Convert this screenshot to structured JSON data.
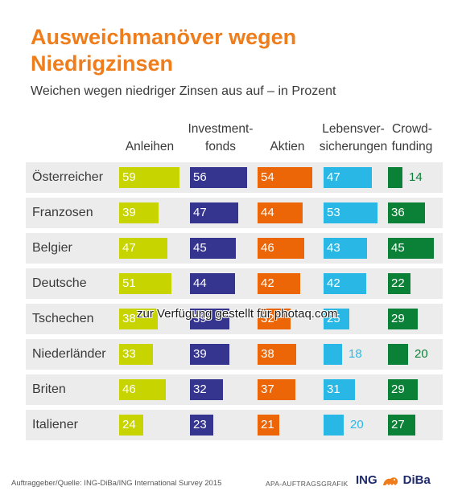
{
  "header": {
    "title_line1": "Ausweichmanöver wegen",
    "title_line2": "Niedrigzinsen",
    "subtitle": "Weichen wegen niedriger Zinsen aus auf – in Prozent"
  },
  "footer": {
    "source": "Auftraggeber/Quelle: ING-DiBa/ING International Survey 2015",
    "apa": "APA-AUFTRAGSGRAFIK",
    "logo_text_1": "ING",
    "logo_text_2": "DiBa"
  },
  "watermark": "zur Verfügung gestellt für photaq.com",
  "colors": {
    "title": "#f07d1b",
    "row_background": "#ececec"
  },
  "chart_data": {
    "type": "bar",
    "title": "Ausweichmanöver wegen Niedrigzinsen",
    "subtitle": "Weichen wegen niedriger Zinsen aus auf – in Prozent",
    "unit": "Prozent",
    "categories": [
      "Österreicher",
      "Franzosen",
      "Belgier",
      "Deutsche",
      "Tschechen",
      "Niederländer",
      "Briten",
      "Italiener"
    ],
    "series": [
      {
        "name": "Anleihen",
        "header_lines": [
          "",
          "Anleihen"
        ],
        "color": "#c8d400",
        "label_color": "#ffffff",
        "values": [
          59,
          39,
          47,
          51,
          38,
          33,
          46,
          24
        ]
      },
      {
        "name": "Investmentfonds",
        "header_lines": [
          "Investment-",
          "fonds"
        ],
        "color": "#35348f",
        "label_color": "#ffffff",
        "values": [
          56,
          47,
          45,
          44,
          39,
          39,
          32,
          23
        ]
      },
      {
        "name": "Aktien",
        "header_lines": [
          "",
          "Aktien"
        ],
        "color": "#ec6608",
        "label_color": "#ffffff",
        "values": [
          54,
          44,
          46,
          42,
          32,
          38,
          37,
          21
        ]
      },
      {
        "name": "Lebensversicherungen",
        "header_lines": [
          "Lebensver-",
          "sicherungen"
        ],
        "color": "#29b8e5",
        "label_color": "#ffffff",
        "outside_label_color": "#29b8e5",
        "values": [
          47,
          53,
          43,
          42,
          25,
          18,
          31,
          20
        ]
      },
      {
        "name": "Crowdfunding",
        "header_lines": [
          "Crowd-",
          "funding"
        ],
        "color": "#0b8137",
        "label_color": "#ffffff",
        "outside_label_color": "#0b8137",
        "values": [
          14,
          36,
          45,
          22,
          29,
          20,
          29,
          27
        ]
      }
    ],
    "ylim": [
      0,
      60
    ]
  }
}
